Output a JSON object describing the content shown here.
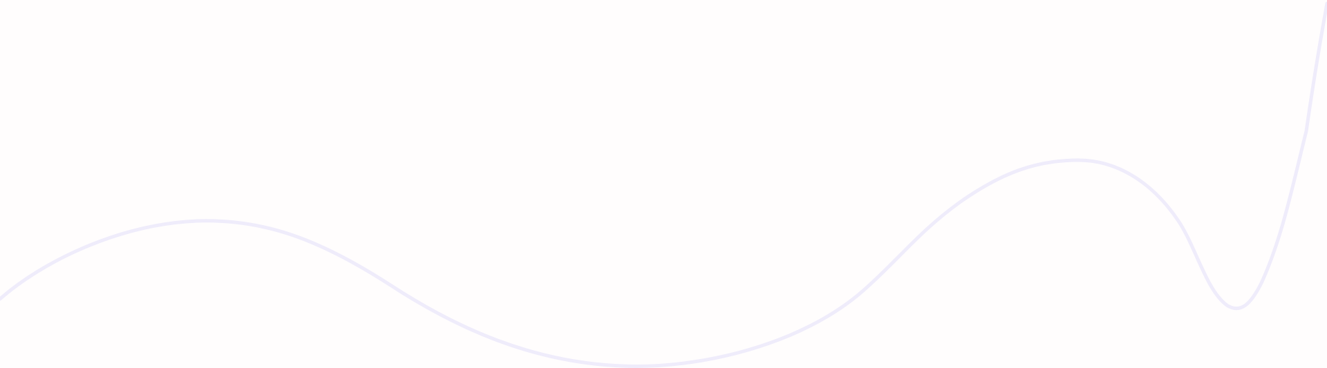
{
  "background": {
    "color": "#fffdfd"
  },
  "decoration": {
    "wave_line_color": "#efecfb",
    "icon": "wave-line"
  }
}
